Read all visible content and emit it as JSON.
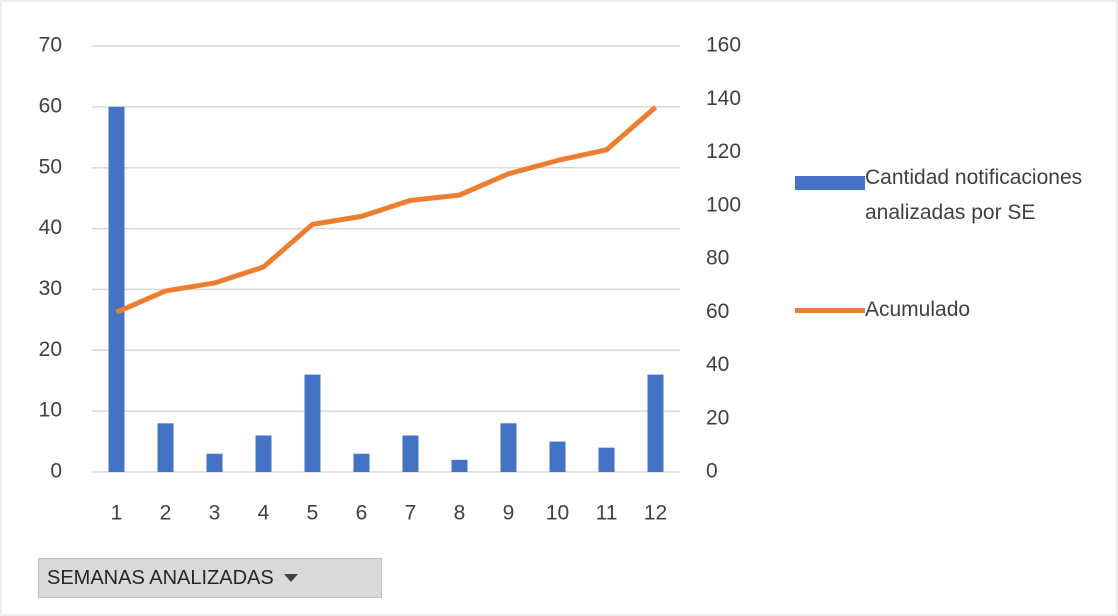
{
  "chart_data": {
    "type": "bar_line",
    "categories": [
      "1",
      "2",
      "3",
      "4",
      "5",
      "6",
      "7",
      "8",
      "9",
      "10",
      "11",
      "12"
    ],
    "series": [
      {
        "name": "Cantidad notificaciones analizadas por SE",
        "color": "#4472c4",
        "type": "bar",
        "values": [
          60,
          8,
          3,
          6,
          16,
          3,
          6,
          2,
          8,
          5,
          4,
          16
        ]
      },
      {
        "name": "Acumulado",
        "color": "#ed7d31",
        "type": "line",
        "axis": "y2",
        "values": [
          60,
          68,
          71,
          77,
          93,
          96,
          102,
          104,
          112,
          117,
          121,
          137
        ]
      }
    ],
    "ylim": [
      0,
      70
    ],
    "yticks": [
      0,
      10,
      20,
      30,
      40,
      50,
      60,
      70
    ],
    "y2lim": [
      0,
      160
    ],
    "y2ticks": [
      0,
      20,
      40,
      60,
      80,
      100,
      120,
      140,
      160
    ],
    "grid": true,
    "legend": "right",
    "field_button": "SEMANAS ANALIZADAS"
  }
}
